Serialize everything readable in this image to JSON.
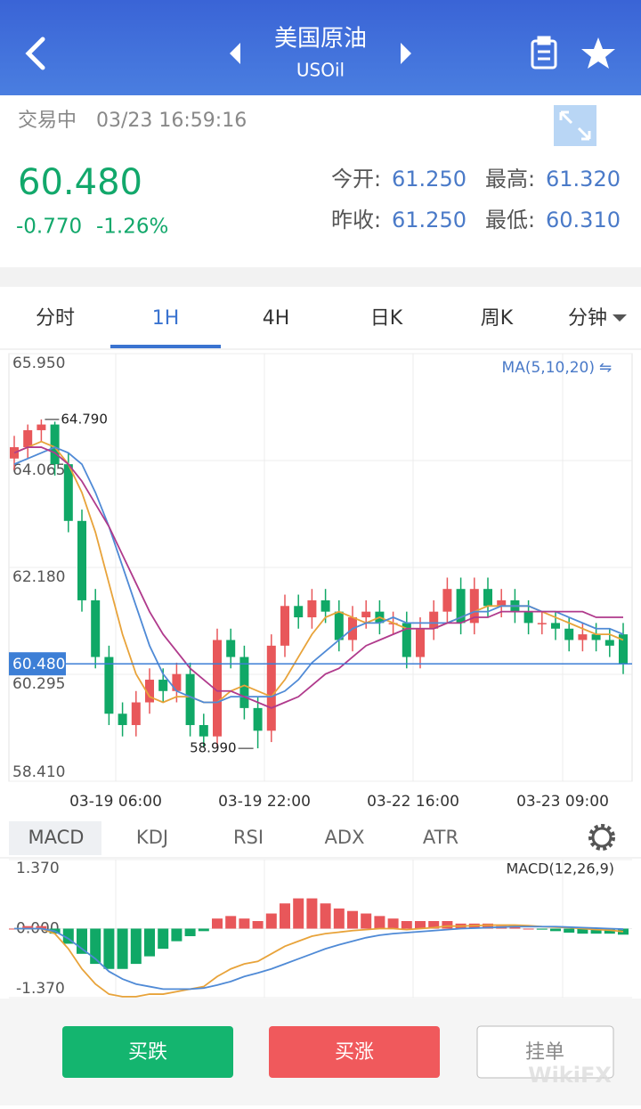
{
  "header": {
    "title": "美国原油",
    "subtitle": "USOil"
  },
  "quote": {
    "status": "交易中",
    "time": "03/23 16:59:16",
    "price": "60.480",
    "change": "-0.770",
    "change_pct": "-1.26%",
    "open_label": "今开:",
    "open": "61.250",
    "high_label": "最高:",
    "high": "61.320",
    "prev_label": "昨收:",
    "prev": "61.250",
    "low_label": "最低:",
    "low": "60.310"
  },
  "tabs": [
    "分时",
    "1H",
    "4H",
    "日K",
    "周K",
    "分钟"
  ],
  "indicator_tabs": [
    "MACD",
    "KDJ",
    "RSI",
    "ADX",
    "ATR"
  ],
  "buttons": [
    "买跌",
    "买涨",
    "挂单"
  ],
  "watermark": "WikiFX",
  "chart_data": {
    "type": "candlestick",
    "legend": "MA(5,10,20)",
    "up_color": "#e8575a",
    "down_color": "#10a866",
    "ylim": [
      58.41,
      65.95
    ],
    "yticks": [
      {
        "value": 65.95,
        "label": "65.950"
      },
      {
        "value": 64.065,
        "label": "64.065"
      },
      {
        "value": 62.18,
        "label": "62.180"
      },
      {
        "value": 60.295,
        "label": "60.295"
      },
      {
        "value": 58.41,
        "label": "58.410"
      }
    ],
    "last_price": {
      "value": 60.48,
      "label": "60.480"
    },
    "max_mark": {
      "value": 64.79,
      "label": "64.790"
    },
    "min_mark": {
      "value": 58.99,
      "label": "58.990"
    },
    "x_labels": [
      "03-19 06:00",
      "03-19 22:00",
      "03-22 16:00",
      "03-23 09:00"
    ],
    "open": [
      64.1,
      64.3,
      64.6,
      64.7,
      64.0,
      63.0,
      61.6,
      60.6,
      59.6,
      59.4,
      59.8,
      60.2,
      60.0,
      60.3,
      59.4,
      59.2,
      60.9,
      60.6,
      59.7,
      59.3,
      60.8,
      61.5,
      61.3,
      61.6,
      61.4,
      60.9,
      61.3,
      61.4,
      61.2,
      61.2,
      60.6,
      61.1,
      61.4,
      61.8,
      61.2,
      61.8,
      61.5,
      61.6,
      61.4,
      61.2,
      61.2,
      61.1,
      60.9,
      61.0,
      60.9,
      61.0
    ],
    "close": [
      64.3,
      64.6,
      64.7,
      64.0,
      63.0,
      61.6,
      60.6,
      59.6,
      59.4,
      59.8,
      60.2,
      60.0,
      60.3,
      59.4,
      59.2,
      60.9,
      60.6,
      59.7,
      59.3,
      60.8,
      61.5,
      61.3,
      61.6,
      61.4,
      60.9,
      61.3,
      61.4,
      61.2,
      61.2,
      60.6,
      61.1,
      61.4,
      61.8,
      61.2,
      61.8,
      61.5,
      61.6,
      61.4,
      61.2,
      61.2,
      61.1,
      60.9,
      61.0,
      60.9,
      60.8,
      60.48
    ],
    "high": [
      64.5,
      64.7,
      64.79,
      64.75,
      64.2,
      63.2,
      61.8,
      60.8,
      59.8,
      60.0,
      60.4,
      60.4,
      60.5,
      60.5,
      59.6,
      61.1,
      61.1,
      60.8,
      59.9,
      61.0,
      61.7,
      61.7,
      61.8,
      61.8,
      61.6,
      61.5,
      61.6,
      61.6,
      61.4,
      61.4,
      61.3,
      61.6,
      62.0,
      62.0,
      62.0,
      62.0,
      61.8,
      61.8,
      61.6,
      61.4,
      61.4,
      61.3,
      61.2,
      61.2,
      61.1,
      61.2
    ],
    "low": [
      63.9,
      64.1,
      64.4,
      63.8,
      62.8,
      61.4,
      60.4,
      59.4,
      59.2,
      59.2,
      59.6,
      59.8,
      59.8,
      59.2,
      59.0,
      59.0,
      60.4,
      59.5,
      58.99,
      59.1,
      60.6,
      61.1,
      61.1,
      61.2,
      60.7,
      60.7,
      61.1,
      61.0,
      61.0,
      60.4,
      60.4,
      60.9,
      61.2,
      61.0,
      61.0,
      61.3,
      61.3,
      61.2,
      61.0,
      61.0,
      60.9,
      60.7,
      60.7,
      60.7,
      60.6,
      60.3
    ],
    "ma": [
      {
        "color": "#e8a33a",
        "values": [
          64.2,
          64.3,
          64.4,
          64.3,
          64.0,
          63.5,
          62.8,
          61.9,
          61.0,
          60.3,
          59.9,
          59.8,
          59.9,
          59.9,
          59.8,
          59.8,
          60.0,
          60.1,
          60.0,
          59.9,
          60.2,
          60.6,
          61.0,
          61.3,
          61.4,
          61.3,
          61.2,
          61.3,
          61.2,
          61.1,
          61.1,
          61.1,
          61.2,
          61.3,
          61.4,
          61.5,
          61.5,
          61.5,
          61.5,
          61.4,
          61.3,
          61.2,
          61.1,
          61.0,
          61.0,
          60.9
        ]
      },
      {
        "color": "#4f8ad6",
        "values": [
          64.0,
          64.1,
          64.2,
          64.3,
          64.2,
          64.0,
          63.5,
          62.9,
          62.2,
          61.5,
          60.8,
          60.3,
          60.0,
          59.9,
          59.8,
          59.8,
          59.9,
          59.9,
          59.9,
          59.9,
          60.0,
          60.2,
          60.5,
          60.7,
          60.9,
          61.1,
          61.2,
          61.2,
          61.3,
          61.2,
          61.2,
          61.2,
          61.2,
          61.3,
          61.4,
          61.4,
          61.5,
          61.5,
          61.5,
          61.4,
          61.4,
          61.3,
          61.2,
          61.1,
          61.1,
          61.0
        ]
      },
      {
        "color": "#b03a8c",
        "values": [
          64.2,
          64.3,
          64.3,
          64.2,
          64.0,
          63.7,
          63.3,
          62.9,
          62.4,
          61.9,
          61.4,
          61.0,
          60.7,
          60.4,
          60.2,
          60.0,
          60.0,
          59.9,
          59.8,
          59.7,
          59.8,
          59.9,
          60.1,
          60.3,
          60.4,
          60.6,
          60.8,
          60.9,
          61.0,
          61.1,
          61.1,
          61.1,
          61.2,
          61.2,
          61.3,
          61.3,
          61.4,
          61.4,
          61.4,
          61.4,
          61.4,
          61.4,
          61.4,
          61.3,
          61.3,
          61.3
        ]
      }
    ],
    "macd": {
      "legend": "MACD(12,26,9)",
      "ylim": [
        -1.37,
        1.37
      ],
      "yticks": [
        {
          "value": 1.37,
          "label": "1.370"
        },
        {
          "value": 0,
          "label": "0.000"
        },
        {
          "value": -1.37,
          "label": "-1.370"
        }
      ],
      "hist": [
        0.0,
        0.05,
        0.05,
        -0.1,
        -0.3,
        -0.5,
        -0.7,
        -0.8,
        -0.8,
        -0.7,
        -0.55,
        -0.4,
        -0.25,
        -0.15,
        -0.05,
        0.2,
        0.25,
        0.2,
        0.15,
        0.3,
        0.5,
        0.6,
        0.6,
        0.5,
        0.4,
        0.35,
        0.3,
        0.25,
        0.2,
        0.15,
        0.15,
        0.15,
        0.15,
        0.1,
        0.1,
        0.1,
        0.05,
        0.05,
        0.0,
        -0.02,
        -0.05,
        -0.08,
        -0.1,
        -0.1,
        -0.1,
        -0.12
      ],
      "dif": {
        "color": "#e8a33a",
        "values": [
          0,
          0,
          0,
          -0.1,
          -0.4,
          -0.8,
          -1.1,
          -1.3,
          -1.35,
          -1.35,
          -1.3,
          -1.3,
          -1.25,
          -1.2,
          -1.15,
          -0.95,
          -0.8,
          -0.7,
          -0.65,
          -0.5,
          -0.35,
          -0.25,
          -0.15,
          -0.1,
          -0.07,
          -0.04,
          -0.02,
          0,
          0,
          -0.02,
          0,
          0.02,
          0.05,
          0.05,
          0.06,
          0.07,
          0.07,
          0.07,
          0.06,
          0.04,
          0.03,
          0.02,
          0.0,
          -0.02,
          -0.03,
          -0.06
        ]
      },
      "dea": {
        "color": "#4f8ad6",
        "values": [
          0,
          0,
          0,
          -0.05,
          -0.2,
          -0.4,
          -0.6,
          -0.85,
          -1.0,
          -1.1,
          -1.15,
          -1.2,
          -1.2,
          -1.2,
          -1.18,
          -1.12,
          -1.05,
          -0.95,
          -0.88,
          -0.8,
          -0.7,
          -0.6,
          -0.5,
          -0.4,
          -0.32,
          -0.25,
          -0.18,
          -0.13,
          -0.1,
          -0.08,
          -0.06,
          -0.04,
          -0.02,
          0,
          0.01,
          0.02,
          0.03,
          0.04,
          0.04,
          0.04,
          0.04,
          0.03,
          0.02,
          0.01,
          0,
          -0.01
        ]
      }
    }
  }
}
